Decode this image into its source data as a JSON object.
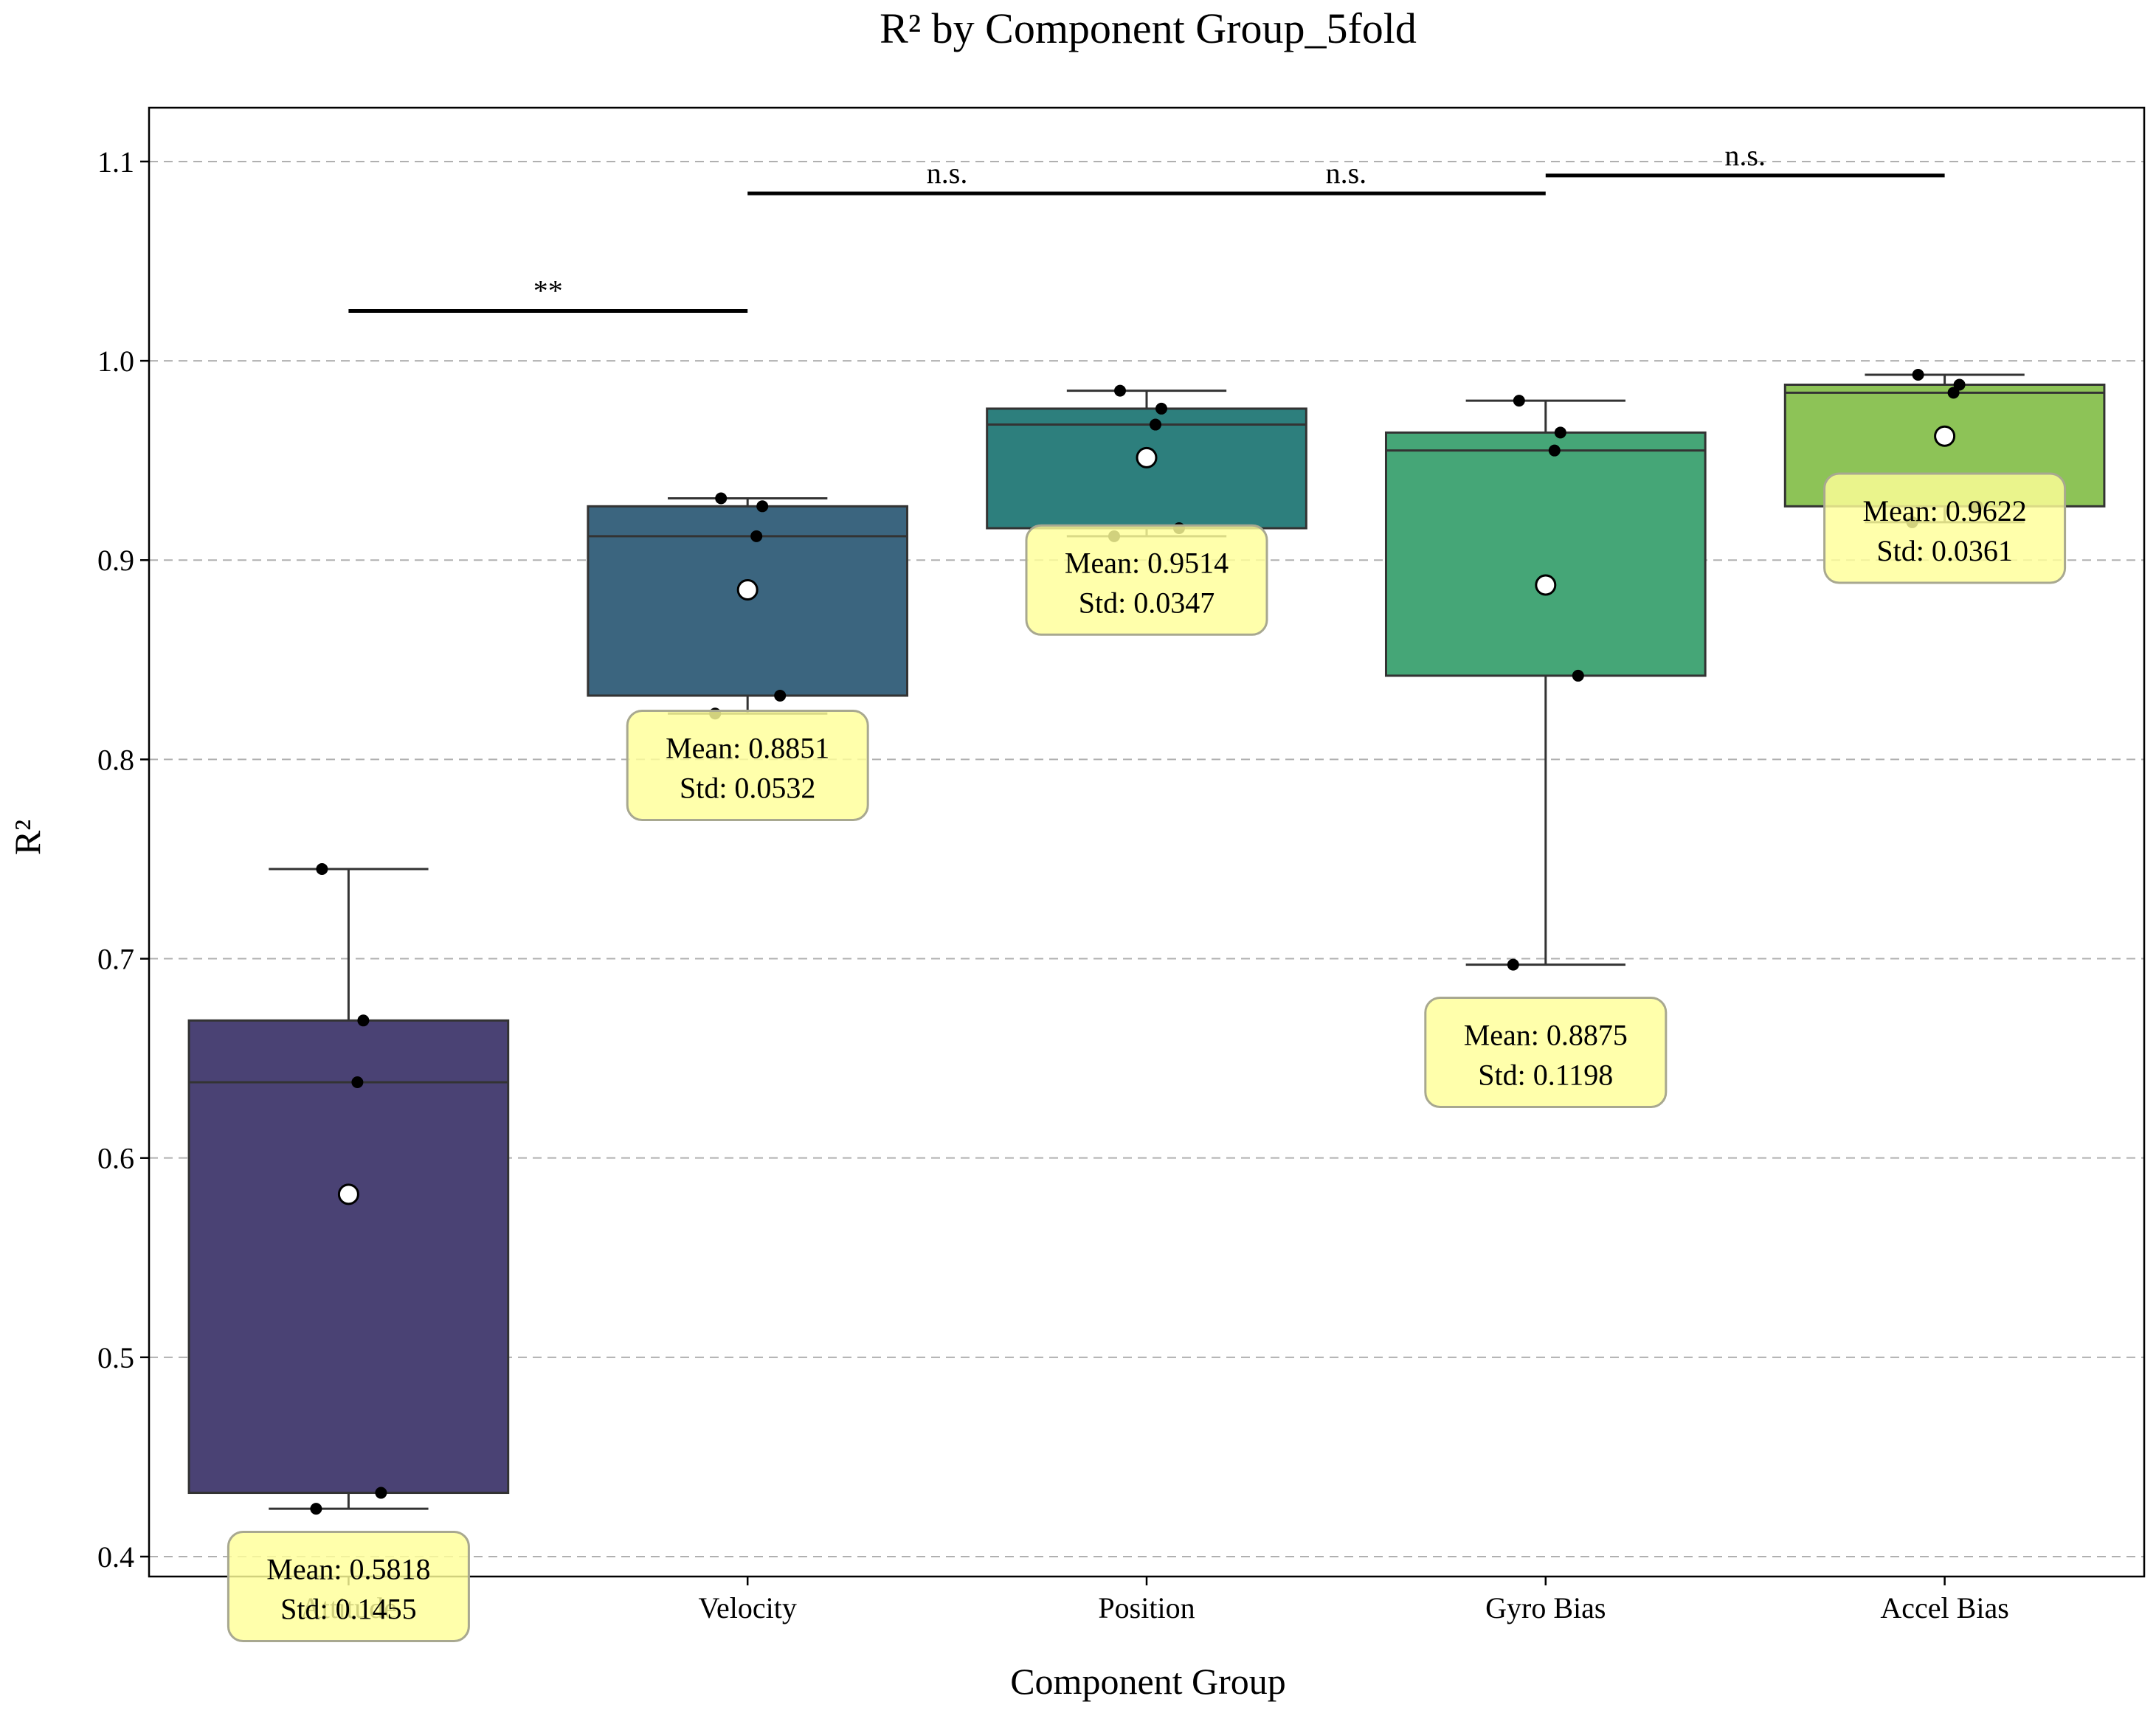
{
  "chart_data": {
    "type": "box",
    "title": "R² by Component Group_5fold",
    "xlabel": "Component Group",
    "ylabel": "R²",
    "ylim": [
      0.39,
      1.127
    ],
    "yticks": [
      0.4,
      0.5,
      0.6,
      0.7,
      0.8,
      0.9,
      1.0,
      1.1
    ],
    "ytick_labels": [
      "0.4",
      "0.5",
      "0.6",
      "0.7",
      "0.8",
      "0.9",
      "1.0",
      "1.1"
    ],
    "grid": "y-dashed",
    "categories": [
      "Attitude",
      "Velocity",
      "Position",
      "Gyro Bias",
      "Accel Bias"
    ],
    "groups": [
      {
        "name": "Attitude",
        "color": "#4a4274",
        "whisker_low": 0.424,
        "q1": 0.432,
        "median": 0.638,
        "q3": 0.669,
        "whisker_high": 0.745,
        "mean": 0.5818,
        "std": 0.1455,
        "points": [
          0.745,
          0.669,
          0.638,
          0.432,
          0.424
        ],
        "annotation": {
          "mean_text": "Mean: 0.5818",
          "std_text": "Std: 0.1455",
          "y": 0.385
        }
      },
      {
        "name": "Velocity",
        "color": "#3b657f",
        "whisker_low": 0.823,
        "q1": 0.832,
        "median": 0.912,
        "q3": 0.927,
        "whisker_high": 0.931,
        "mean": 0.8851,
        "std": 0.0532,
        "points": [
          0.931,
          0.927,
          0.912,
          0.832,
          0.823
        ],
        "annotation": {
          "mean_text": "Mean: 0.8851",
          "std_text": "Std: 0.0532",
          "y": 0.797
        }
      },
      {
        "name": "Position",
        "color": "#2d7f7d",
        "whisker_low": 0.912,
        "q1": 0.916,
        "median": 0.968,
        "q3": 0.976,
        "whisker_high": 0.985,
        "mean": 0.9514,
        "std": 0.0347,
        "points": [
          0.985,
          0.976,
          0.968,
          0.916,
          0.912
        ],
        "annotation": {
          "mean_text": "Mean: 0.9514",
          "std_text": "Std: 0.0347",
          "y": 0.89
        }
      },
      {
        "name": "Gyro Bias",
        "color": "#45a677",
        "whisker_low": 0.697,
        "q1": 0.842,
        "median": 0.955,
        "q3": 0.964,
        "whisker_high": 0.98,
        "mean": 0.8875,
        "std": 0.1198,
        "points": [
          0.98,
          0.964,
          0.955,
          0.842,
          0.697
        ],
        "annotation": {
          "mean_text": "Mean: 0.8875",
          "std_text": "Std: 0.1198",
          "y": 0.653
        }
      },
      {
        "name": "Accel Bias",
        "color": "#8dc357",
        "whisker_low": 0.919,
        "q1": 0.927,
        "median": 0.984,
        "q3": 0.988,
        "whisker_high": 0.993,
        "mean": 0.9622,
        "std": 0.0361,
        "points": [
          0.993,
          0.988,
          0.984,
          0.927,
          0.919
        ],
        "annotation": {
          "mean_text": "Mean: 0.9622",
          "std_text": "Std: 0.0361",
          "y": 0.916
        }
      }
    ],
    "significance": [
      {
        "from": 0,
        "to": 1,
        "y": 1.025,
        "label": "**"
      },
      {
        "from": 1,
        "to": 3,
        "y": 1.084,
        "label": "n.s."
      },
      {
        "from": 3,
        "to": 4,
        "y": 1.093,
        "label": "n.s."
      }
    ],
    "extra_labels": [
      {
        "at": 2,
        "y": 1.084,
        "label": "n.s."
      }
    ]
  }
}
